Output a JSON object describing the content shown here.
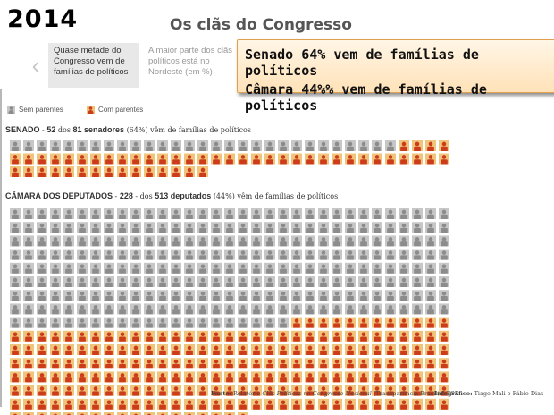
{
  "year": "2014",
  "title": "Os clãs do Congresso",
  "carousel": {
    "prev_label": "‹",
    "card1": "Quase metade do Congresso vem de famílias de políticos",
    "card2": "A maior parte dos clãs políticos está no Nordeste (em %)"
  },
  "callout": {
    "line1": "Senado 64% vem de famílias de políticos",
    "line2": "Câmara 44%% vem de famílias de políticos"
  },
  "legend": {
    "without": "Sem parentes",
    "with": "Com parentes"
  },
  "colors": {
    "gray_bg": "#c7c7c7",
    "gray_fig": "#8c8c8c",
    "orange_bg": "#f0c47a",
    "orange_fig": "#cc3b1a"
  },
  "senado": {
    "title": "SENADO",
    "n_with": "52",
    "mid1": "dos",
    "n_total": "81 senadores",
    "pct": "(64%) vêm de famílias de políticos"
  },
  "camara": {
    "title": "CÂMARA DOS DEPUTADOS",
    "n_with": "228",
    "mid1": "dos",
    "n_total": "513 deputados",
    "pct": "(44%) vêm de famílias de políticos"
  },
  "footer": {
    "fonte_label": "Fonte:",
    "fonte_prefix": "Relatório",
    "fonte_italic": "Clãs Políticos no Congresso Nacional",
    "fonte_suffix": "(Transparência Brasil) e TSE",
    "info_label": "Infográfico:",
    "info_text": "Tiago Mali e Fábio Dias"
  },
  "chart_data": [
    {
      "type": "waffle",
      "title": "SENADO",
      "total": 81,
      "with_relatives": 52,
      "without_relatives": 29,
      "percent_with": 64,
      "columns": 33
    },
    {
      "type": "waffle",
      "title": "CÂMARA DOS DEPUTADOS",
      "total": 513,
      "with_relatives": 228,
      "without_relatives": 285,
      "percent_with": 44,
      "columns": 33
    }
  ]
}
